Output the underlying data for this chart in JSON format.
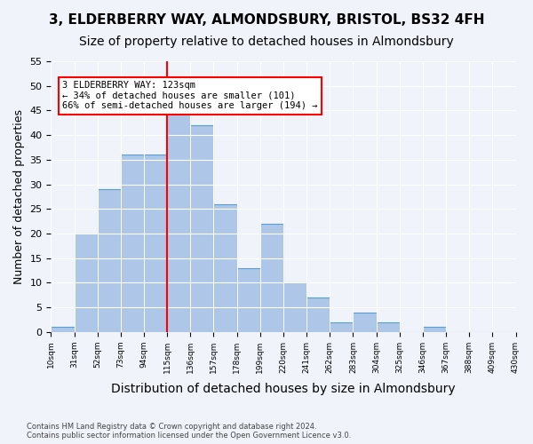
{
  "title1": "3, ELDERBERRY WAY, ALMONDSBURY, BRISTOL, BS32 4FH",
  "title2": "Size of property relative to detached houses in Almondsbury",
  "xlabel": "Distribution of detached houses by size in Almondsbury",
  "ylabel": "Number of detached properties",
  "footnote": "Contains HM Land Registry data © Crown copyright and database right 2024.\nContains public sector information licensed under the Open Government Licence v3.0.",
  "bin_labels": [
    "10sqm",
    "31sqm",
    "52sqm",
    "73sqm",
    "94sqm",
    "115sqm",
    "136sqm",
    "157sqm",
    "178sqm",
    "199sqm",
    "220sqm",
    "241sqm",
    "262sqm",
    "283sqm",
    "304sqm",
    "325sqm",
    "346sqm",
    "367sqm",
    "388sqm",
    "409sqm",
    "430sqm"
  ],
  "bar_values": [
    1,
    20,
    29,
    36,
    36,
    46,
    42,
    26,
    13,
    22,
    10,
    7,
    2,
    4,
    2,
    0,
    1,
    0,
    0,
    0
  ],
  "bar_color": "#aec6e8",
  "bar_edge_color": "#5a9fd4",
  "vline_x": 5.0,
  "vline_color": "red",
  "annotation_text": "3 ELDERBERRY WAY: 123sqm\n← 34% of detached houses are smaller (101)\n66% of semi-detached houses are larger (194) →",
  "annotation_box_color": "white",
  "annotation_box_edge_color": "red",
  "ylim": [
    0,
    55
  ],
  "yticks": [
    0,
    5,
    10,
    15,
    20,
    25,
    30,
    35,
    40,
    45,
    50,
    55
  ],
  "background_color": "#f0f4fa",
  "grid_color": "white",
  "title1_fontsize": 11,
  "title2_fontsize": 10,
  "xlabel_fontsize": 10,
  "ylabel_fontsize": 9
}
